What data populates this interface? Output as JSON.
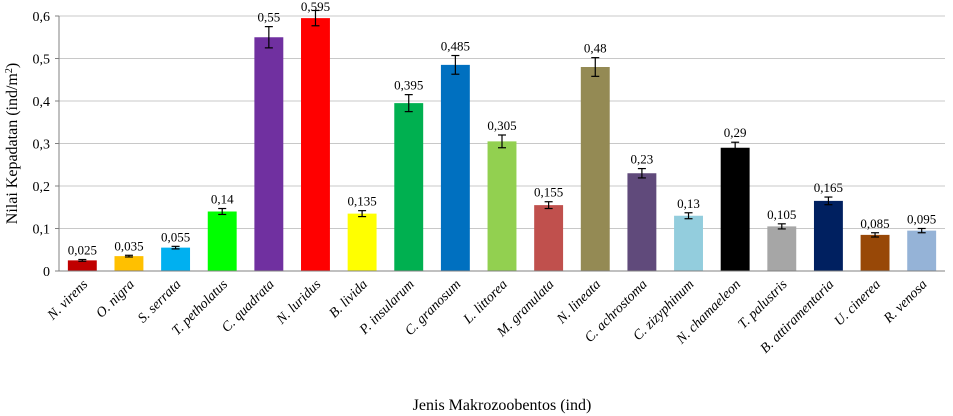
{
  "chart_data": {
    "type": "bar",
    "title": "",
    "xlabel": "Jenis Makrozoobentos (ind)",
    "ylabel_main": "Nilai Kepadatan (ind/m",
    "ylabel_sup": "2",
    "ylabel_tail": ")",
    "ylim": [
      0,
      0.6
    ],
    "yticks": [
      "0",
      "0,1",
      "0,2",
      "0,3",
      "0,4",
      "0,5",
      "0,6"
    ],
    "ytick_values": [
      0,
      0.1,
      0.2,
      0.3,
      0.4,
      0.5,
      0.6
    ],
    "grid": true,
    "legend": "none",
    "categories": [
      "N. virens",
      "O. nigra",
      "S. serrata",
      "T. petholatus",
      "C. quadrata",
      "N. luridus",
      "B. livida",
      "P. insularum",
      "C. granosum",
      "L. littorea",
      "M. granulata",
      "N. lineata",
      "C. achrostoma",
      "C. zizyphinum",
      "N. chamaeleon",
      "T. palustris",
      "B. attiramentaria",
      "U. cinerea",
      "R. venosa"
    ],
    "values": [
      0.025,
      0.035,
      0.055,
      0.14,
      0.55,
      0.595,
      0.135,
      0.395,
      0.485,
      0.305,
      0.155,
      0.48,
      0.23,
      0.13,
      0.29,
      0.105,
      0.165,
      0.085,
      0.095
    ],
    "data_labels": [
      "0,025",
      "0,035",
      "0,055",
      "0,14",
      "0,55",
      "0,595",
      "0,135",
      "0,395",
      "0,485",
      "0,305",
      "0,155",
      "0,48",
      "0,23",
      "0,13",
      "0,29",
      "0,105",
      "0,165",
      "0,085",
      "0,095"
    ],
    "error": [
      0.002,
      0.002,
      0.003,
      0.007,
      0.025,
      0.018,
      0.007,
      0.02,
      0.022,
      0.015,
      0.008,
      0.022,
      0.011,
      0.007,
      0.013,
      0.006,
      0.009,
      0.005,
      0.005
    ],
    "colors": [
      "#c00000",
      "#ffc000",
      "#00b0f0",
      "#00ff00",
      "#7030a0",
      "#ff0000",
      "#ffff00",
      "#00b050",
      "#0070c0",
      "#92d050",
      "#c0504d",
      "#948a54",
      "#604a7b",
      "#93cddd",
      "#000000",
      "#a6a6a6",
      "#002060",
      "#984807",
      "#95b3d7"
    ]
  }
}
